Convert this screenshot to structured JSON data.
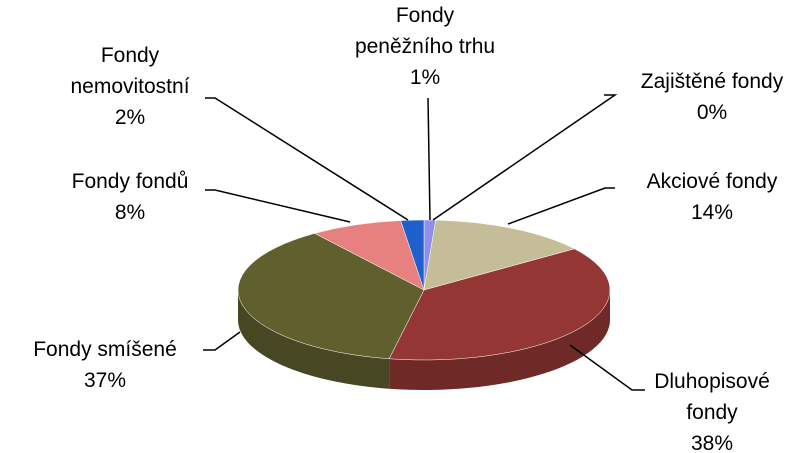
{
  "chart_data": {
    "type": "pie3d",
    "categories": [
      "Fondy peněžního trhu",
      "Zajištěné fondy",
      "Akciové fondy",
      "Dluhopisové fondy",
      "Fondy smíšené",
      "Fondy fondů",
      "Fondy nemovitostní"
    ],
    "values": [
      1,
      0,
      14,
      38,
      37,
      8,
      2
    ],
    "value_labels": [
      "1%",
      "0%",
      "14%",
      "38%",
      "37%",
      "8%",
      "2%"
    ],
    "colors": [
      "#8f8fe8",
      "#a0a0f0",
      "#c4bd97",
      "#943634",
      "#605f2e",
      "#e6817f",
      "#1f5fcc"
    ]
  }
}
